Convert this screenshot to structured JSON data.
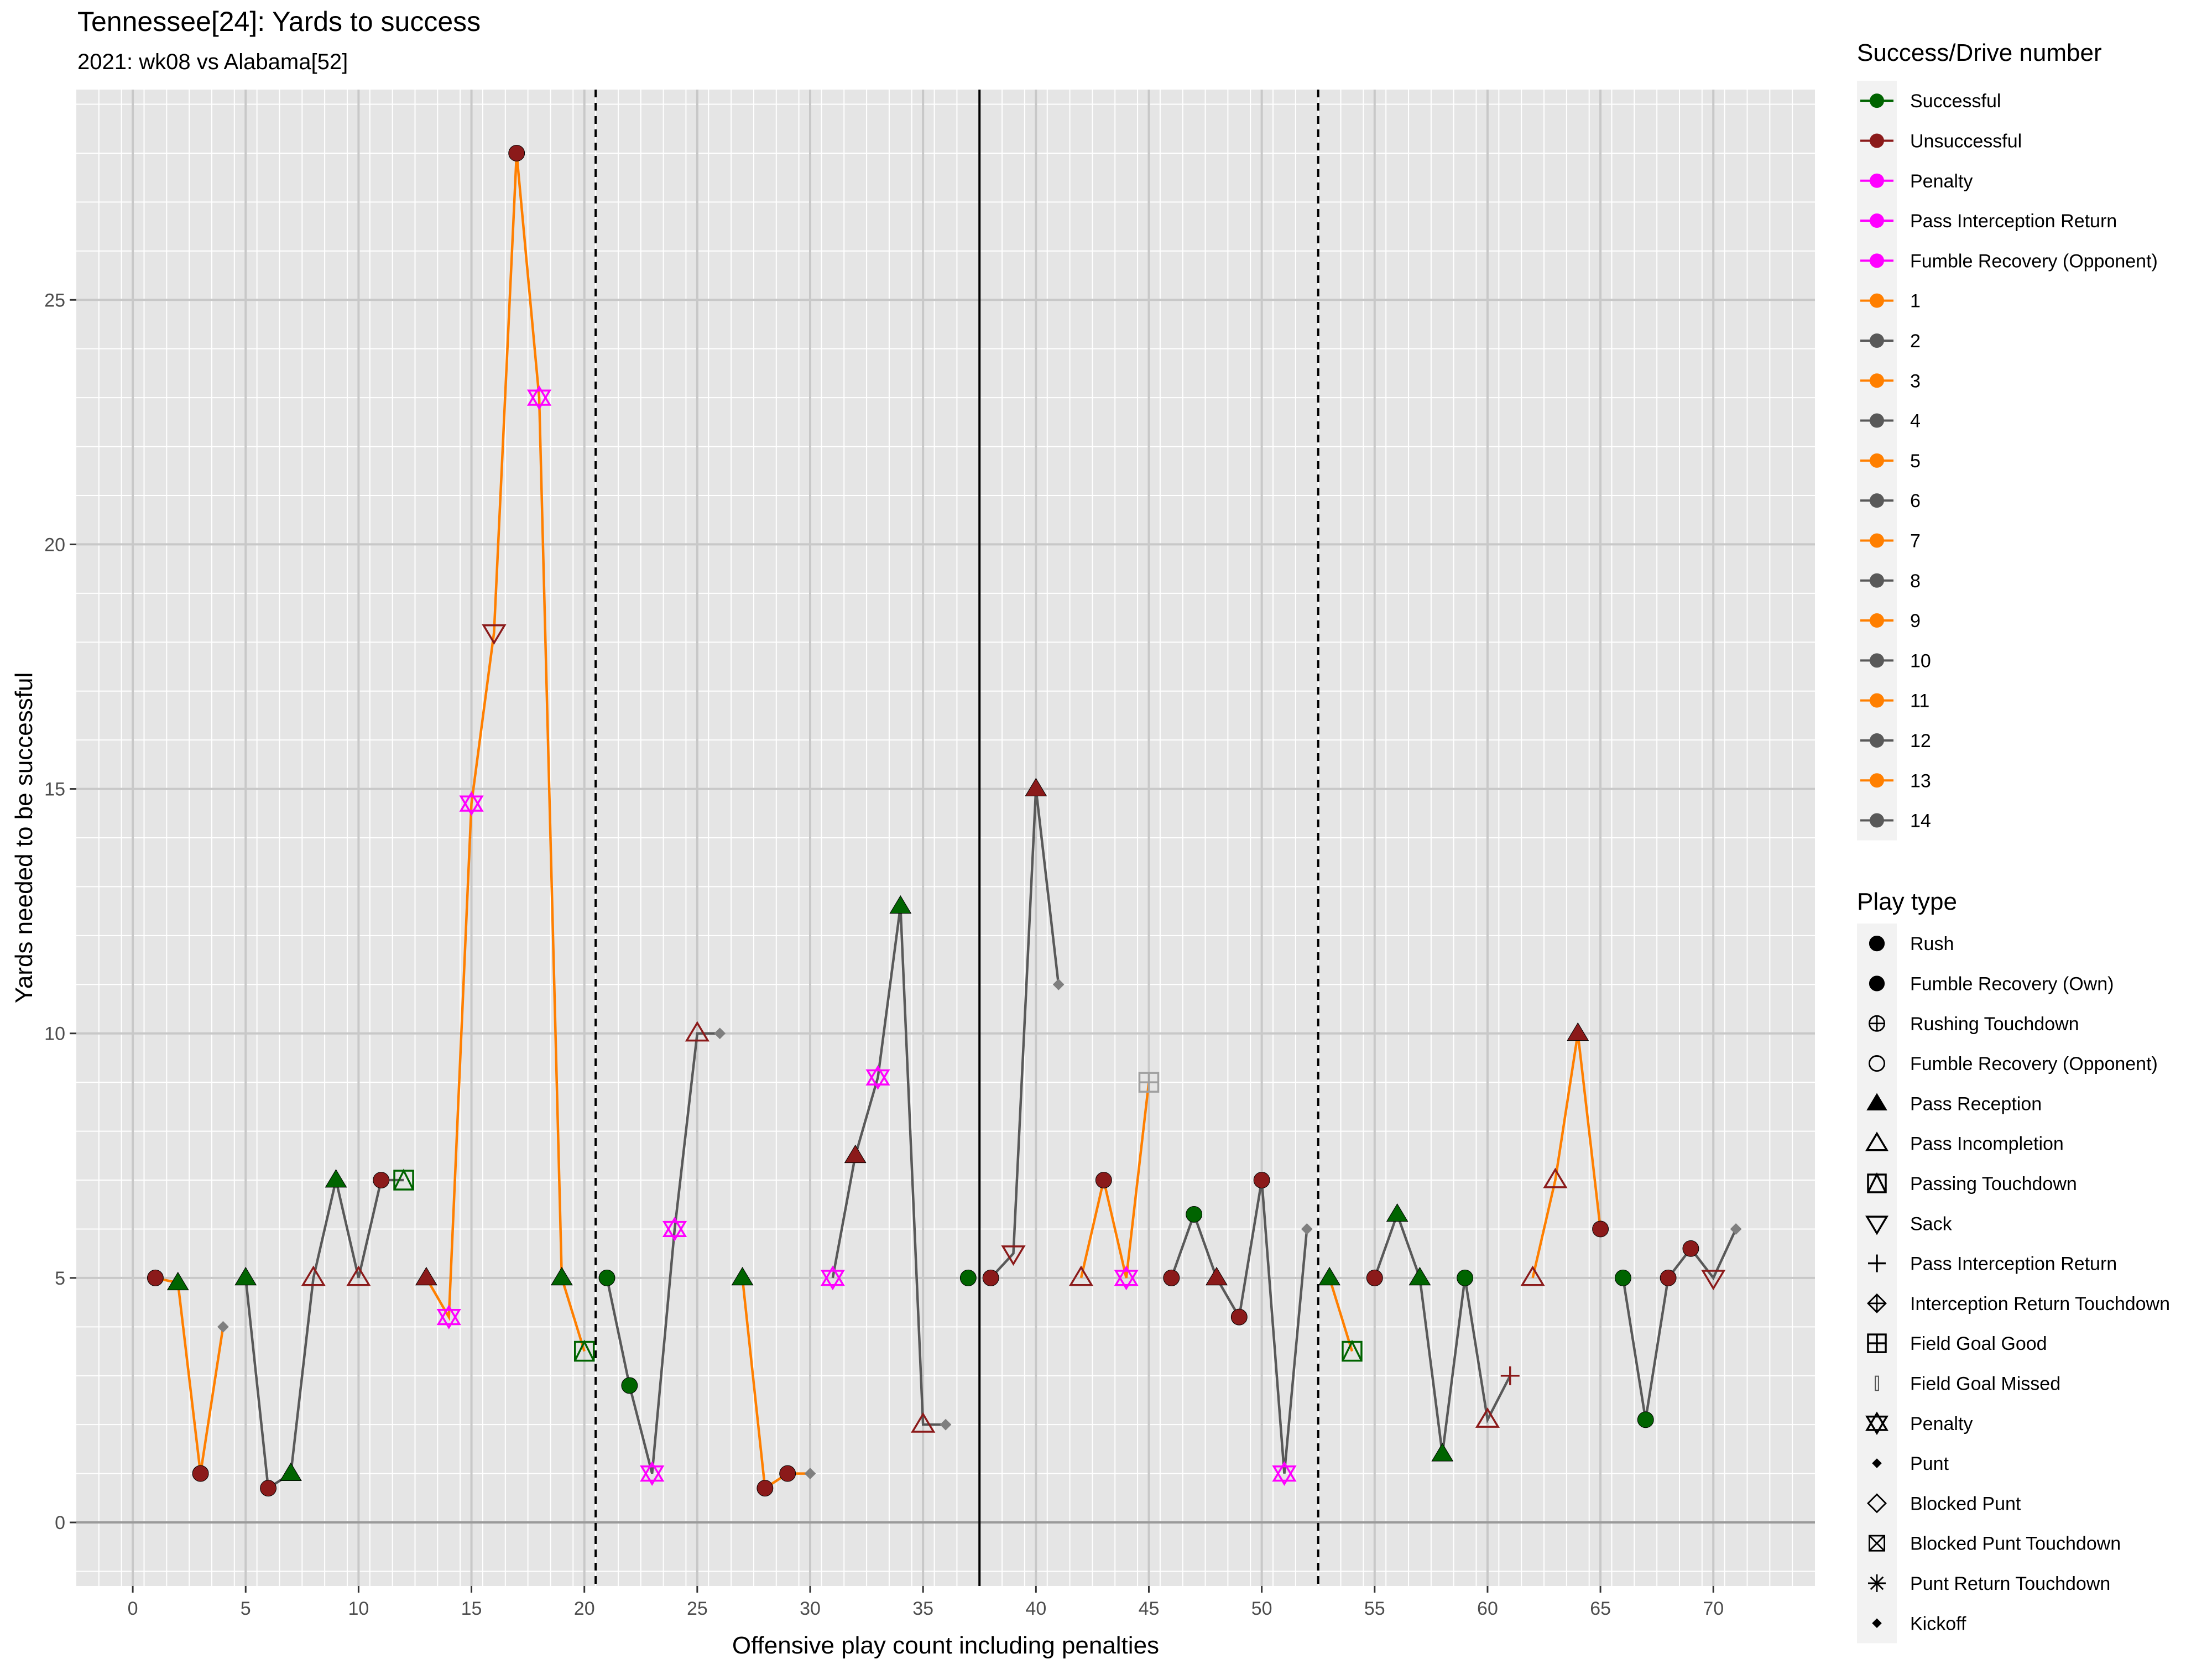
{
  "title": "Tennessee[24]: Yards to success",
  "subtitle": "2021: wk08 vs Alabama[52]",
  "chart_data": {
    "type": "line",
    "xlabel": "Offensive play count including penalties",
    "ylabel": "Yards needed to be successful",
    "xlim": [
      -2.5,
      74.5
    ],
    "ylim": [
      -1.3,
      29.3
    ],
    "x_ticks": [
      0,
      5,
      10,
      15,
      20,
      25,
      30,
      35,
      40,
      45,
      50,
      55,
      60,
      65,
      70
    ],
    "y_ticks": [
      0,
      5,
      10,
      15,
      20,
      25
    ],
    "grid": true,
    "half_line": 37.5,
    "quarter_lines": [
      20.5,
      52.5
    ],
    "colors": {
      "panel": "#e5e5e5",
      "successful": "#006400",
      "unsuccessful": "#8b1a1a",
      "penalty": "#ff00ff",
      "drive_odd": "#ff7f00",
      "drive_even": "#595959",
      "punt": "#7f7f7f"
    },
    "drives": [
      {
        "name": "1",
        "color": "drive_odd",
        "points": [
          [
            1,
            5
          ],
          [
            2,
            4.9
          ],
          [
            3,
            1
          ],
          [
            4,
            4
          ]
        ]
      },
      {
        "name": "2",
        "color": "drive_even",
        "points": [
          [
            5,
            5
          ],
          [
            6,
            0.7
          ],
          [
            7,
            1
          ],
          [
            8,
            5
          ],
          [
            9,
            7
          ],
          [
            10,
            5
          ],
          [
            11,
            7
          ],
          [
            12,
            7
          ]
        ]
      },
      {
        "name": "3",
        "color": "drive_odd",
        "points": [
          [
            13,
            5
          ],
          [
            14,
            4.2
          ],
          [
            15,
            14.7
          ],
          [
            16,
            18.2
          ],
          [
            17,
            28
          ],
          [
            18,
            23
          ],
          [
            19,
            5
          ],
          [
            20,
            3.5
          ]
        ]
      },
      {
        "name": "4",
        "color": "drive_even",
        "points": [
          [
            21,
            5
          ],
          [
            22,
            2.8
          ],
          [
            23,
            1
          ],
          [
            24,
            6
          ],
          [
            25,
            10
          ],
          [
            26,
            10
          ]
        ]
      },
      {
        "name": "5",
        "color": "drive_odd",
        "points": [
          [
            27,
            5
          ],
          [
            28,
            0.7
          ],
          [
            29,
            1
          ],
          [
            30,
            1
          ]
        ]
      },
      {
        "name": "6",
        "color": "drive_even",
        "points": [
          [
            31,
            5
          ],
          [
            32,
            7.5
          ],
          [
            33,
            9.1
          ],
          [
            34,
            12.6
          ],
          [
            35,
            2
          ],
          [
            36,
            2
          ]
        ]
      },
      {
        "name": "7",
        "color": "drive_odd",
        "points": [
          [
            37,
            5
          ]
        ]
      },
      {
        "name": "8",
        "color": "drive_even",
        "points": [
          [
            38,
            5
          ],
          [
            39,
            5.5
          ],
          [
            40,
            15
          ],
          [
            41,
            11
          ]
        ]
      },
      {
        "name": "9",
        "color": "drive_odd",
        "points": [
          [
            42,
            5
          ],
          [
            43,
            7
          ],
          [
            44,
            5
          ],
          [
            45,
            9
          ]
        ]
      },
      {
        "name": "10",
        "color": "drive_even",
        "points": [
          [
            46,
            5
          ],
          [
            47,
            6.3
          ],
          [
            48,
            5
          ],
          [
            49,
            4.2
          ],
          [
            50,
            7
          ],
          [
            51,
            1
          ],
          [
            52,
            6
          ]
        ]
      },
      {
        "name": "11",
        "color": "drive_odd",
        "points": [
          [
            53,
            5
          ],
          [
            54,
            3.5
          ]
        ]
      },
      {
        "name": "12",
        "color": "drive_even",
        "points": [
          [
            55,
            5
          ],
          [
            56,
            6.3
          ],
          [
            57,
            5
          ],
          [
            58,
            1.4
          ],
          [
            59,
            5
          ],
          [
            60,
            2.1
          ],
          [
            61,
            3
          ]
        ]
      },
      {
        "name": "13",
        "color": "drive_odd",
        "points": [
          [
            62,
            5
          ],
          [
            63,
            7
          ],
          [
            64,
            10
          ],
          [
            65,
            6
          ]
        ]
      },
      {
        "name": "14",
        "color": "drive_even",
        "points": [
          [
            66,
            5
          ],
          [
            67,
            2.1
          ],
          [
            68,
            5
          ],
          [
            69,
            5.6
          ],
          [
            70,
            5
          ],
          [
            71,
            6
          ]
        ]
      }
    ],
    "plays": [
      {
        "x": 1,
        "y": 5,
        "type": "rush",
        "status": "unsuccessful"
      },
      {
        "x": 2,
        "y": 4.9,
        "type": "pass_reception",
        "status": "successful"
      },
      {
        "x": 3,
        "y": 1,
        "type": "rush",
        "status": "unsuccessful"
      },
      {
        "x": 4,
        "y": 4,
        "type": "punt",
        "status": "punt"
      },
      {
        "x": 5,
        "y": 5,
        "type": "pass_reception",
        "status": "successful"
      },
      {
        "x": 6,
        "y": 0.7,
        "type": "rush",
        "status": "unsuccessful"
      },
      {
        "x": 7,
        "y": 1,
        "type": "pass_reception",
        "status": "successful"
      },
      {
        "x": 8,
        "y": 5,
        "type": "pass_incompletion",
        "status": "unsuccessful"
      },
      {
        "x": 9,
        "y": 7,
        "type": "pass_reception",
        "status": "successful"
      },
      {
        "x": 10,
        "y": 5,
        "type": "pass_incompletion",
        "status": "unsuccessful"
      },
      {
        "x": 11,
        "y": 7,
        "type": "rush",
        "status": "unsuccessful"
      },
      {
        "x": 12,
        "y": 7,
        "type": "passing_touchdown",
        "status": "successful"
      },
      {
        "x": 13,
        "y": 5,
        "type": "pass_reception",
        "status": "unsuccessful"
      },
      {
        "x": 14,
        "y": 4.2,
        "type": "penalty",
        "status": "penalty"
      },
      {
        "x": 15,
        "y": 14.7,
        "type": "penalty",
        "status": "penalty"
      },
      {
        "x": 16,
        "y": 18.2,
        "type": "sack",
        "status": "unsuccessful"
      },
      {
        "x": 17,
        "y": 28,
        "type": "rush",
        "status": "unsuccessful"
      },
      {
        "x": 18,
        "y": 23,
        "type": "penalty",
        "status": "penalty"
      },
      {
        "x": 19,
        "y": 5,
        "type": "pass_reception",
        "status": "successful"
      },
      {
        "x": 20,
        "y": 3.5,
        "type": "passing_touchdown",
        "status": "successful"
      },
      {
        "x": 21,
        "y": 5,
        "type": "rush",
        "status": "successful"
      },
      {
        "x": 22,
        "y": 2.8,
        "type": "rush",
        "status": "successful"
      },
      {
        "x": 23,
        "y": 1,
        "type": "penalty",
        "status": "penalty"
      },
      {
        "x": 24,
        "y": 6,
        "type": "penalty",
        "status": "penalty"
      },
      {
        "x": 25,
        "y": 10,
        "type": "pass_incompletion",
        "status": "unsuccessful"
      },
      {
        "x": 26,
        "y": 10,
        "type": "punt",
        "status": "punt"
      },
      {
        "x": 27,
        "y": 5,
        "type": "pass_reception",
        "status": "successful"
      },
      {
        "x": 28,
        "y": 0.7,
        "type": "rush",
        "status": "unsuccessful"
      },
      {
        "x": 29,
        "y": 1,
        "type": "rush",
        "status": "unsuccessful"
      },
      {
        "x": 30,
        "y": 1,
        "type": "punt",
        "status": "punt"
      },
      {
        "x": 31,
        "y": 5,
        "type": "penalty",
        "status": "penalty"
      },
      {
        "x": 32,
        "y": 7.5,
        "type": "pass_reception",
        "status": "unsuccessful"
      },
      {
        "x": 33,
        "y": 9.1,
        "type": "penalty",
        "status": "penalty"
      },
      {
        "x": 34,
        "y": 12.6,
        "type": "pass_reception",
        "status": "successful"
      },
      {
        "x": 35,
        "y": 2,
        "type": "pass_incompletion",
        "status": "unsuccessful"
      },
      {
        "x": 36,
        "y": 2,
        "type": "punt",
        "status": "punt"
      },
      {
        "x": 37,
        "y": 5,
        "type": "rush",
        "status": "successful"
      },
      {
        "x": 38,
        "y": 5,
        "type": "rush",
        "status": "unsuccessful"
      },
      {
        "x": 39,
        "y": 5.5,
        "type": "sack",
        "status": "unsuccessful"
      },
      {
        "x": 40,
        "y": 15,
        "type": "pass_reception",
        "status": "unsuccessful"
      },
      {
        "x": 41,
        "y": 11,
        "type": "punt",
        "status": "punt"
      },
      {
        "x": 42,
        "y": 5,
        "type": "pass_incompletion",
        "status": "unsuccessful"
      },
      {
        "x": 43,
        "y": 7,
        "type": "rush",
        "status": "unsuccessful"
      },
      {
        "x": 44,
        "y": 5,
        "type": "penalty",
        "status": "penalty"
      },
      {
        "x": 45,
        "y": 9,
        "type": "field_goal_good",
        "status": "neutral"
      },
      {
        "x": 46,
        "y": 5,
        "type": "rush",
        "status": "unsuccessful"
      },
      {
        "x": 47,
        "y": 6.3,
        "type": "rush",
        "status": "successful"
      },
      {
        "x": 48,
        "y": 5,
        "type": "pass_reception",
        "status": "unsuccessful"
      },
      {
        "x": 49,
        "y": 4.2,
        "type": "rush",
        "status": "unsuccessful"
      },
      {
        "x": 50,
        "y": 7,
        "type": "rush",
        "status": "unsuccessful"
      },
      {
        "x": 51,
        "y": 1,
        "type": "penalty",
        "status": "penalty"
      },
      {
        "x": 52,
        "y": 6,
        "type": "punt",
        "status": "punt"
      },
      {
        "x": 53,
        "y": 5,
        "type": "pass_reception",
        "status": "successful"
      },
      {
        "x": 54,
        "y": 3.5,
        "type": "passing_touchdown",
        "status": "successful"
      },
      {
        "x": 55,
        "y": 5,
        "type": "rush",
        "status": "unsuccessful"
      },
      {
        "x": 56,
        "y": 6.3,
        "type": "pass_reception",
        "status": "successful"
      },
      {
        "x": 57,
        "y": 5,
        "type": "pass_reception",
        "status": "successful"
      },
      {
        "x": 58,
        "y": 1.4,
        "type": "pass_reception",
        "status": "successful"
      },
      {
        "x": 59,
        "y": 5,
        "type": "rush",
        "status": "successful"
      },
      {
        "x": 60,
        "y": 2.1,
        "type": "pass_incompletion",
        "status": "unsuccessful"
      },
      {
        "x": 61,
        "y": 3,
        "type": "pass_interception_return",
        "status": "unsuccessful"
      },
      {
        "x": 62,
        "y": 5,
        "type": "pass_incompletion",
        "status": "unsuccessful"
      },
      {
        "x": 63,
        "y": 7,
        "type": "pass_incompletion",
        "status": "unsuccessful"
      },
      {
        "x": 64,
        "y": 10,
        "type": "pass_reception",
        "status": "unsuccessful"
      },
      {
        "x": 65,
        "y": 6,
        "type": "rush",
        "status": "unsuccessful"
      },
      {
        "x": 66,
        "y": 5,
        "type": "rush",
        "status": "successful"
      },
      {
        "x": 67,
        "y": 2.1,
        "type": "rush",
        "status": "successful"
      },
      {
        "x": 68,
        "y": 5,
        "type": "rush",
        "status": "unsuccessful"
      },
      {
        "x": 69,
        "y": 5.6,
        "type": "rush",
        "status": "unsuccessful"
      },
      {
        "x": 70,
        "y": 5,
        "type": "sack",
        "status": "unsuccessful"
      },
      {
        "x": 71,
        "y": 6,
        "type": "punt",
        "status": "punt"
      }
    ],
    "legend_position": "right",
    "legend_success": {
      "title": "Success/Drive number",
      "items": [
        {
          "label": "Successful",
          "color": "#006400"
        },
        {
          "label": "Unsuccessful",
          "color": "#8b1a1a"
        },
        {
          "label": "Penalty",
          "color": "#ff00ff"
        },
        {
          "label": "Pass Interception Return",
          "color": "#ff00ff"
        },
        {
          "label": "Fumble Recovery (Opponent)",
          "color": "#ff00ff"
        },
        {
          "label": "1",
          "color": "#ff7f00"
        },
        {
          "label": "2",
          "color": "#595959"
        },
        {
          "label": "3",
          "color": "#ff7f00"
        },
        {
          "label": "4",
          "color": "#595959"
        },
        {
          "label": "5",
          "color": "#ff7f00"
        },
        {
          "label": "6",
          "color": "#595959"
        },
        {
          "label": "7",
          "color": "#ff7f00"
        },
        {
          "label": "8",
          "color": "#595959"
        },
        {
          "label": "9",
          "color": "#ff7f00"
        },
        {
          "label": "10",
          "color": "#595959"
        },
        {
          "label": "11",
          "color": "#ff7f00"
        },
        {
          "label": "12",
          "color": "#595959"
        },
        {
          "label": "13",
          "color": "#ff7f00"
        },
        {
          "label": "14",
          "color": "#595959"
        }
      ]
    },
    "legend_playtype": {
      "title": "Play type",
      "items": [
        {
          "label": "Rush",
          "shape": "rush"
        },
        {
          "label": "Fumble Recovery (Own)",
          "shape": "rush"
        },
        {
          "label": "Rushing Touchdown",
          "shape": "circle_plus"
        },
        {
          "label": "Fumble Recovery (Opponent)",
          "shape": "circle_open"
        },
        {
          "label": "Pass Reception",
          "shape": "pass_reception"
        },
        {
          "label": "Pass Incompletion",
          "shape": "pass_incompletion"
        },
        {
          "label": "Passing Touchdown",
          "shape": "passing_touchdown"
        },
        {
          "label": "Sack",
          "shape": "sack"
        },
        {
          "label": "Pass Interception Return",
          "shape": "pass_interception_return"
        },
        {
          "label": "Interception Return Touchdown",
          "shape": "diamond_plus"
        },
        {
          "label": "Field Goal Good",
          "shape": "field_goal_good"
        },
        {
          "label": "Field Goal Missed",
          "shape": "field_goal_missed"
        },
        {
          "label": "Penalty",
          "shape": "penalty"
        },
        {
          "label": "Punt",
          "shape": "punt"
        },
        {
          "label": "Blocked Punt",
          "shape": "diamond_open"
        },
        {
          "label": "Blocked Punt Touchdown",
          "shape": "square_x"
        },
        {
          "label": "Punt Return Touchdown",
          "shape": "asterisk"
        },
        {
          "label": "Kickoff",
          "shape": "punt"
        }
      ]
    }
  }
}
